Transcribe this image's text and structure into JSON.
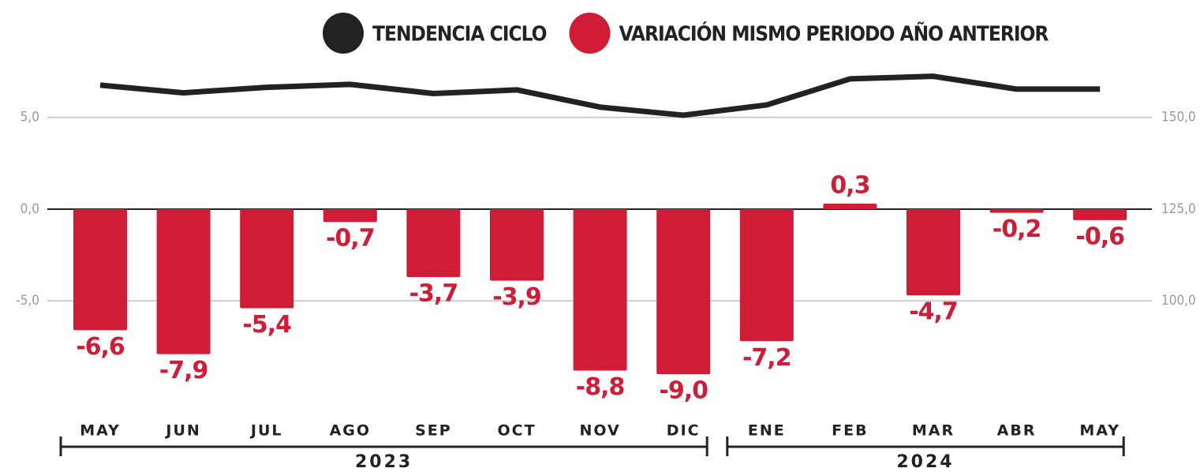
{
  "chart_data": {
    "type": "bar_line",
    "categories": [
      "MAY",
      "JUN",
      "JUL",
      "AGO",
      "SEP",
      "OCT",
      "NOV",
      "DIC",
      "ENE",
      "FEB",
      "MAR",
      "ABR",
      "MAY"
    ],
    "x_groups": [
      {
        "label": "2023",
        "count": 8
      },
      {
        "label": "2024",
        "count": 5
      }
    ],
    "series": [
      {
        "name": "TENDENCIA CICLO",
        "type": "line",
        "axis": "y2",
        "color": "#222222",
        "values": [
          158.8,
          156.7,
          158.2,
          159.0,
          156.5,
          157.5,
          152.8,
          150.6,
          153.4,
          160.5,
          161.2,
          157.7,
          157.7
        ]
      },
      {
        "name": "VARIACIÓN MISMO PERIODO AÑO ANTERIOR",
        "type": "bar",
        "color": "#d01c36",
        "values": [
          -6.6,
          -7.9,
          -5.4,
          -0.7,
          -3.7,
          -3.9,
          -8.8,
          -9.0,
          -7.2,
          0.3,
          -4.7,
          -0.2,
          -0.6
        ],
        "value_labels": [
          "-6,6",
          "-7,9",
          "-5,4",
          "-0,7",
          "-3,7",
          "-3,9",
          "-8,8",
          "-9,0",
          "-7,2",
          "0,3",
          "-4,7",
          "-0,2",
          "-0,6"
        ]
      }
    ],
    "ylim": [
      -10.5,
      8
    ],
    "yticks": [
      {
        "value": -5,
        "label": "-5,0"
      },
      {
        "value": 0,
        "label": "0,0"
      },
      {
        "value": 5,
        "label": "5,0"
      }
    ],
    "y2lim": [
      72.5,
      165
    ],
    "y2ticks": [
      {
        "value": 100,
        "label": "100,0"
      },
      {
        "value": 125,
        "label": "125,0"
      },
      {
        "value": 150,
        "label": "150,0"
      }
    ],
    "grid": true,
    "legend": "top"
  }
}
